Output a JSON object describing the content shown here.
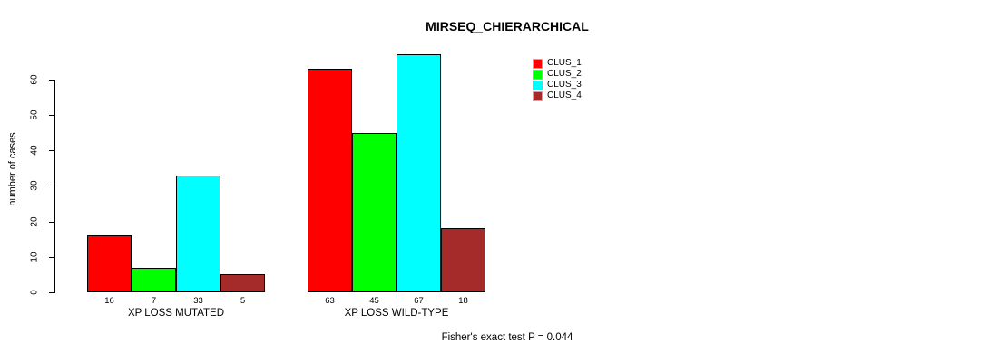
{
  "title": "MIRSEQ_CHIERARCHICAL",
  "chart_data": {
    "type": "bar",
    "title": "MIRSEQ_CHIERARCHICAL",
    "xlabel": "",
    "ylabel": "number of cases",
    "ylim": [
      0,
      60
    ],
    "yticks": [
      0,
      10,
      20,
      30,
      40,
      50,
      60
    ],
    "grid": false,
    "bar_borders": true,
    "value_labels_shown": true,
    "legend_position": "top-right",
    "categories": [
      "XP LOSS MUTATED",
      "XP LOSS WILD-TYPE"
    ],
    "series": [
      {
        "name": "CLUS_1",
        "color": "#ff0000",
        "values": [
          16,
          63
        ]
      },
      {
        "name": "CLUS_2",
        "color": "#00ff00",
        "values": [
          7,
          45
        ]
      },
      {
        "name": "CLUS_3",
        "color": "#00ffff",
        "values": [
          33,
          67
        ]
      },
      {
        "name": "CLUS_4",
        "color": "#a52a2a",
        "values": [
          5,
          18
        ]
      }
    ],
    "annotation": "Fisher's exact test P = 0.044"
  },
  "colors": {
    "background": "#ffffff",
    "axis": "#000000",
    "text": "#000000",
    "bar_border": "#000000"
  }
}
